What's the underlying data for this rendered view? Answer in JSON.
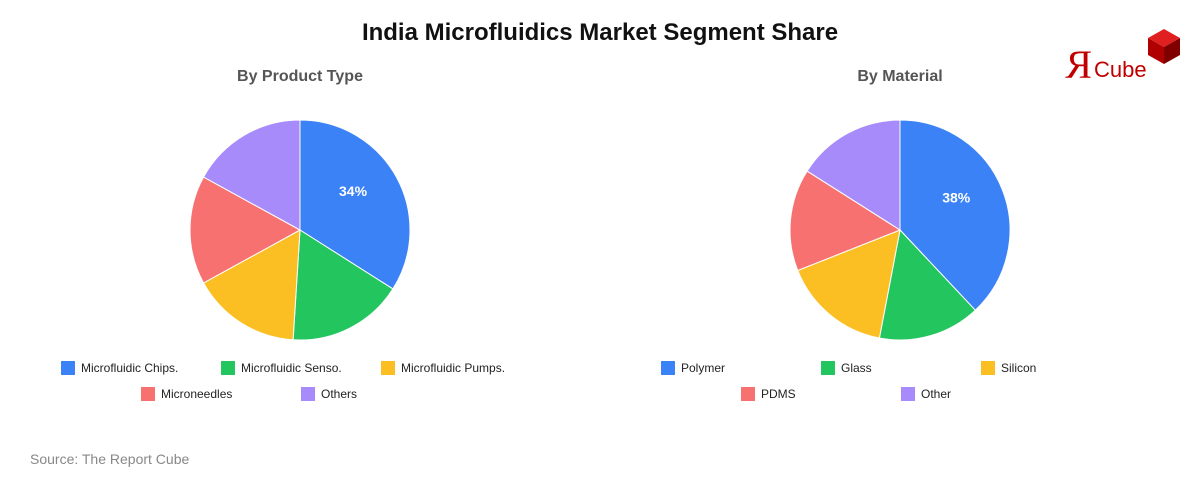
{
  "title": "India Microfluidics Market Segment Share",
  "source": "Source: The Report Cube",
  "logo": {
    "text": "ЯCube",
    "color": "#c00000"
  },
  "chart_data": [
    {
      "type": "pie",
      "title": "By Product Type",
      "categories": [
        "Microfluidic Chips.",
        "Microfluidic Senso.",
        "Microfluidic Pumps.",
        "Microneedles",
        "Others"
      ],
      "values": [
        34,
        17,
        16,
        16,
        17
      ],
      "colors": [
        "#3b82f6",
        "#22c55e",
        "#fbbf24",
        "#f87171",
        "#a78bfa"
      ],
      "data_labels_shown": [
        "34%"
      ],
      "legend": "bottom"
    },
    {
      "type": "pie",
      "title": "By Material",
      "categories": [
        "Polymer",
        "Glass",
        "Silicon",
        "PDMS",
        "Other"
      ],
      "values": [
        38,
        15,
        16,
        15,
        16
      ],
      "colors": [
        "#3b82f6",
        "#22c55e",
        "#fbbf24",
        "#f87171",
        "#a78bfa"
      ],
      "data_labels_shown": [
        "38%"
      ],
      "legend": "bottom"
    }
  ]
}
